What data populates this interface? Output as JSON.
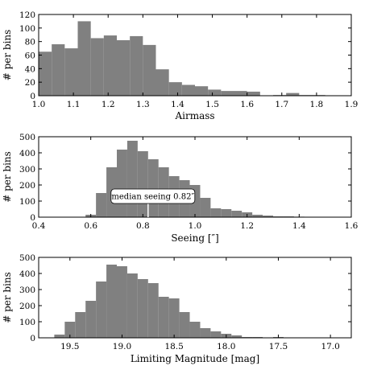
{
  "figure": {
    "bar_color": "#808080",
    "annotation_box_color": "#ffffff"
  },
  "chart_data": [
    {
      "type": "bar",
      "xlabel": "Airmass",
      "ylabel": "# per bins",
      "xlim": [
        1.0,
        1.9
      ],
      "ylim": [
        0,
        120
      ],
      "xticks": [
        "1.0",
        "1.1",
        "1.2",
        "1.3",
        "1.4",
        "1.5",
        "1.6",
        "1.7",
        "1.8",
        "1.9"
      ],
      "yticks": [
        "0",
        "20",
        "40",
        "60",
        "80",
        "100",
        "120"
      ],
      "bin_edges": [
        1.0,
        1.0375,
        1.075,
        1.1125,
        1.15,
        1.1875,
        1.225,
        1.2625,
        1.3,
        1.3375,
        1.375,
        1.4125,
        1.45,
        1.4875,
        1.525,
        1.5625,
        1.6,
        1.6375,
        1.675,
        1.7125,
        1.75,
        1.7875,
        1.825,
        1.8625,
        1.9
      ],
      "values": [
        65,
        76,
        70,
        110,
        85,
        89,
        82,
        88,
        75,
        39,
        20,
        16,
        14,
        9,
        7,
        7,
        6,
        0,
        1,
        4,
        1,
        1,
        0,
        0
      ]
    },
    {
      "type": "bar",
      "xlabel": "Seeing [″]",
      "ylabel": "# per bins",
      "xlim": [
        0.4,
        1.6
      ],
      "ylim": [
        0,
        500
      ],
      "xticks": [
        "0.4",
        "0.6",
        "0.8",
        "1.0",
        "1.2",
        "1.4",
        "1.6"
      ],
      "yticks": [
        "0",
        "100",
        "200",
        "300",
        "400",
        "500"
      ],
      "bin_edges": [
        0.58,
        0.62,
        0.66,
        0.7,
        0.74,
        0.78,
        0.82,
        0.86,
        0.9,
        0.94,
        0.98,
        1.02,
        1.06,
        1.1,
        1.14,
        1.18,
        1.22,
        1.26,
        1.3,
        1.34,
        1.38,
        1.42,
        1.46
      ],
      "values": [
        15,
        150,
        310,
        420,
        475,
        410,
        360,
        310,
        255,
        230,
        200,
        120,
        55,
        50,
        40,
        30,
        15,
        10,
        5,
        5,
        3,
        2
      ],
      "annotation": {
        "text": "median seeing 0.82″",
        "x": 0.82
      }
    },
    {
      "type": "bar",
      "xlabel": "Limiting Magnitude [mag]",
      "ylabel": "# per bins",
      "x_reversed": true,
      "xlim": [
        19.8,
        16.8
      ],
      "ylim": [
        0,
        500
      ],
      "xticks": [
        "19.5",
        "19.0",
        "18.5",
        "18.0",
        "17.5",
        "17.0"
      ],
      "yticks": [
        "0",
        "100",
        "200",
        "300",
        "400",
        "500"
      ],
      "bin_edges": [
        19.65,
        19.55,
        19.45,
        19.35,
        19.25,
        19.15,
        19.05,
        18.95,
        18.85,
        18.75,
        18.65,
        18.55,
        18.45,
        18.35,
        18.25,
        18.15,
        18.05,
        17.95,
        17.85,
        17.75,
        17.65,
        17.55,
        17.45,
        17.35
      ],
      "values": [
        20,
        100,
        160,
        230,
        350,
        455,
        445,
        400,
        365,
        340,
        255,
        245,
        160,
        100,
        60,
        40,
        25,
        15,
        5,
        5,
        2,
        5,
        2
      ]
    }
  ]
}
